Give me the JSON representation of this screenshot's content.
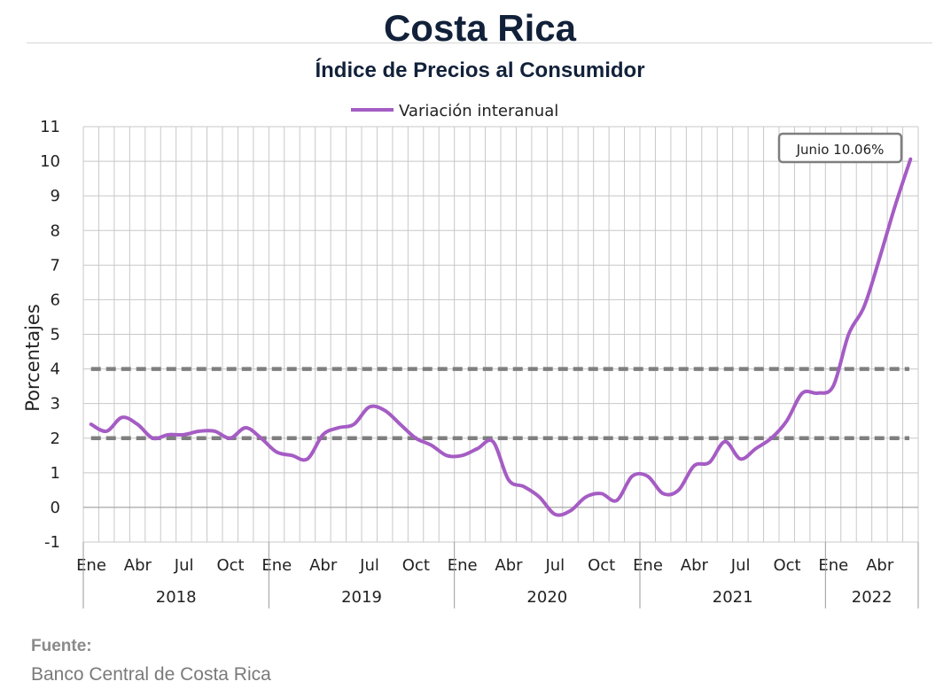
{
  "header": {
    "title": "Costa Rica",
    "subtitle": "Índice de Precios al Consumidor"
  },
  "source": {
    "label": "Fuente:",
    "text": "Banco Central de Costa Rica"
  },
  "colors": {
    "line": "#a55cc4",
    "reference": "#7f7f7f",
    "grid": "#c8c8c8",
    "negative_tick": "#cc0000"
  },
  "chart_data": {
    "type": "line",
    "title": "Índice de Precios al Consumidor",
    "xlabel": "",
    "ylabel": "Porcentajes",
    "ylim": [
      -1,
      11
    ],
    "yticks": [
      -1,
      0,
      1,
      2,
      3,
      4,
      5,
      6,
      7,
      8,
      9,
      10,
      11
    ],
    "grid": true,
    "legend": "top-center",
    "month_tick_labels": [
      "Ene",
      "Abr",
      "Jul",
      "Oct",
      "Ene",
      "Abr",
      "Jul",
      "Oct",
      "Ene",
      "Abr",
      "Jul",
      "Oct",
      "Ene",
      "Abr",
      "Jul",
      "Oct",
      "Ene",
      "Abr"
    ],
    "years": [
      {
        "label": "2018",
        "months": 12
      },
      {
        "label": "2019",
        "months": 12
      },
      {
        "label": "2020",
        "months": 12
      },
      {
        "label": "2021",
        "months": 12
      },
      {
        "label": "2022",
        "months": 6
      }
    ],
    "reference_lines": [
      2,
      4
    ],
    "series": [
      {
        "name": "Variación interanual",
        "values": [
          2.4,
          2.2,
          2.6,
          2.4,
          2.0,
          2.1,
          2.1,
          2.2,
          2.2,
          2.0,
          2.3,
          2.0,
          1.6,
          1.5,
          1.4,
          2.1,
          2.3,
          2.4,
          2.9,
          2.8,
          2.4,
          2.0,
          1.8,
          1.5,
          1.5,
          1.7,
          1.9,
          0.8,
          0.6,
          0.3,
          -0.2,
          -0.1,
          0.3,
          0.4,
          0.2,
          0.9,
          0.9,
          0.4,
          0.5,
          1.2,
          1.3,
          1.9,
          1.4,
          1.7,
          2.0,
          2.5,
          3.3,
          3.3,
          3.5,
          5.0,
          5.8,
          7.2,
          8.7,
          10.06
        ]
      }
    ],
    "annotations": [
      {
        "text": "Junio 10.06%",
        "target_index": 53
      }
    ]
  }
}
